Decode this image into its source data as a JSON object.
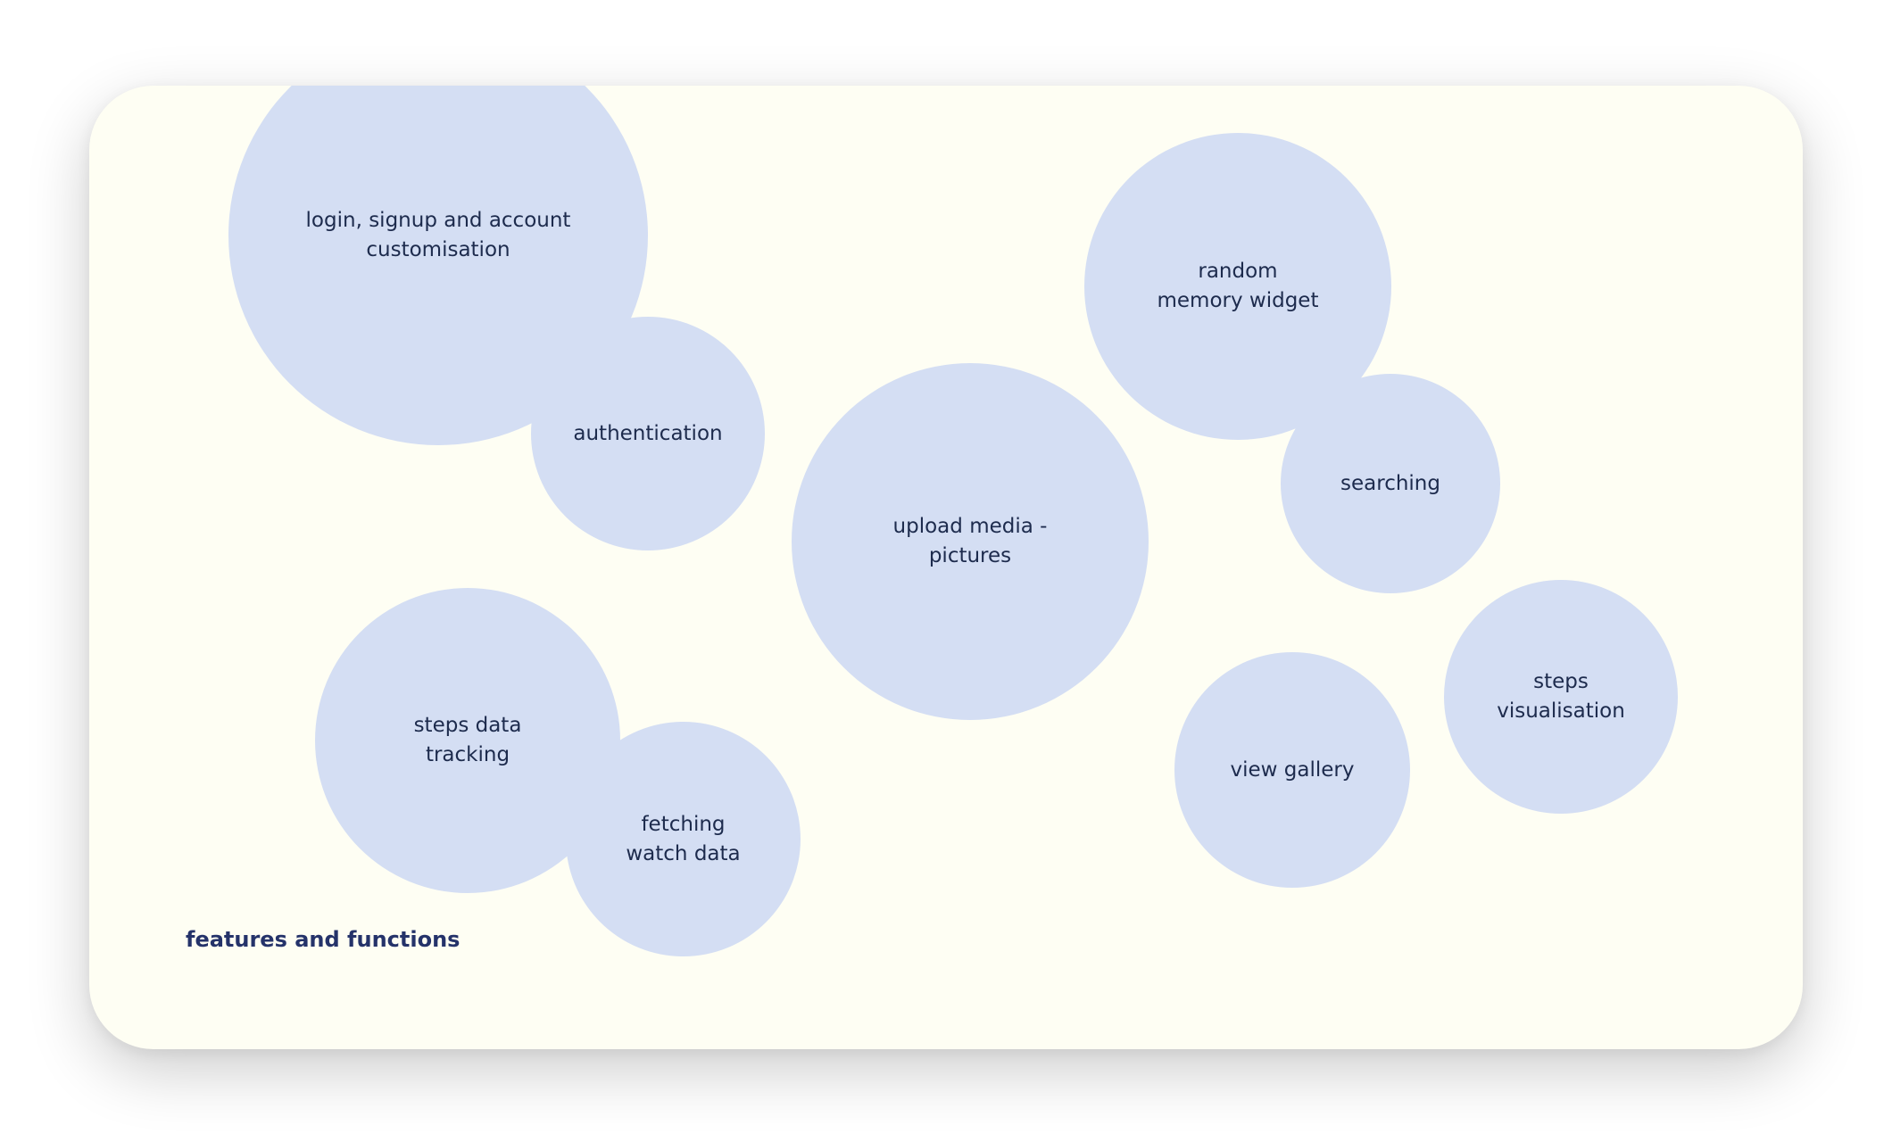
{
  "caption": "features and functions",
  "colors": {
    "card_background": "#fefef3",
    "bubble_fill": "#d4def3",
    "bubble_text": "#1d2b4d",
    "caption_text": "#25336a"
  },
  "bubbles": {
    "login": "login, signup and account\ncustomisation",
    "authentication": "authentication",
    "upload_media": "upload media -\npictures",
    "random_memory": "random\nmemory widget",
    "searching": "searching",
    "steps_data": "steps data\ntracking",
    "fetching_watch": "fetching\nwatch data",
    "view_gallery": "view gallery",
    "steps_visualisation": "steps\nvisualisation"
  }
}
